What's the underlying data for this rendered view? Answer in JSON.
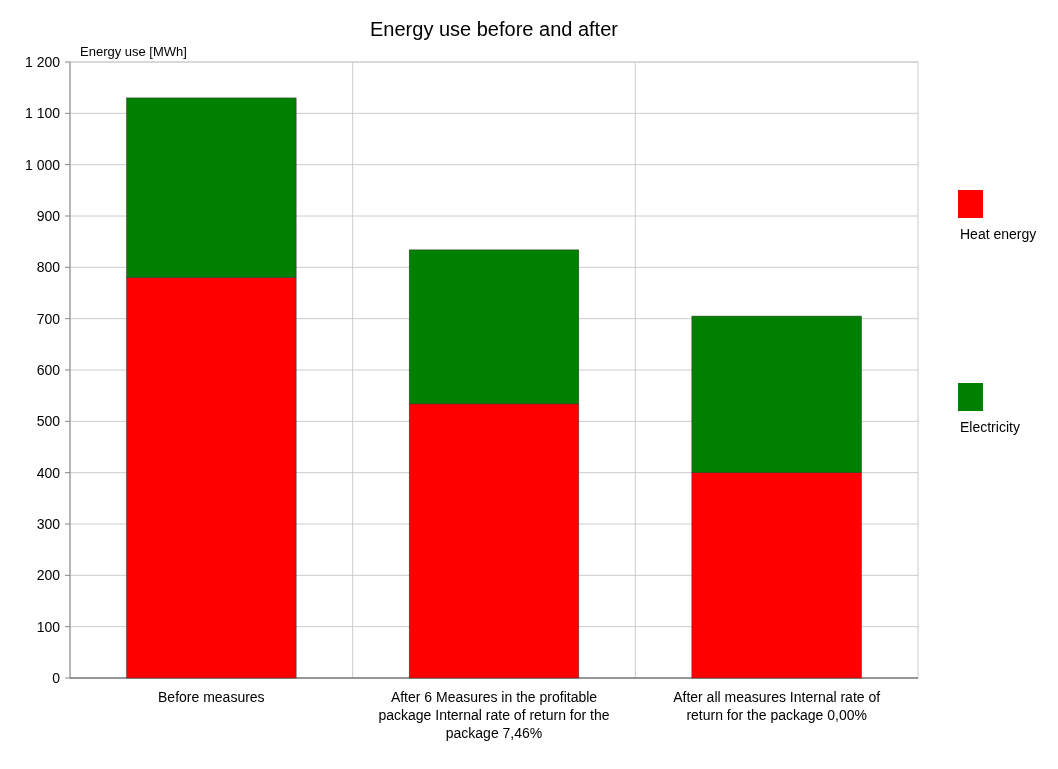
{
  "chart_data": {
    "type": "bar",
    "title": "Energy use before and after",
    "ylabel": "Energy use [MWh]",
    "categories": [
      "Before measures",
      "After 6 Measures in the profitable package Internal rate of return for the package 7,46%",
      "After all measures Internal rate of return for the package 0,00%"
    ],
    "series": [
      {
        "name": "Heat energy",
        "color": "#ff0000",
        "values": [
          780,
          534,
          400
        ]
      },
      {
        "name": "Electricity",
        "color": "#008000",
        "values": [
          350,
          300,
          305
        ]
      }
    ],
    "stacked": true,
    "ylim": [
      0,
      1200
    ],
    "yticks": [
      0,
      100,
      200,
      300,
      400,
      500,
      600,
      700,
      800,
      900,
      {
        "value": 1000,
        "label": "1 000"
      },
      {
        "value": 1100,
        "label": "1 100"
      },
      {
        "value": 1200,
        "label": "1 200"
      }
    ],
    "grid": true,
    "legend": "right"
  }
}
